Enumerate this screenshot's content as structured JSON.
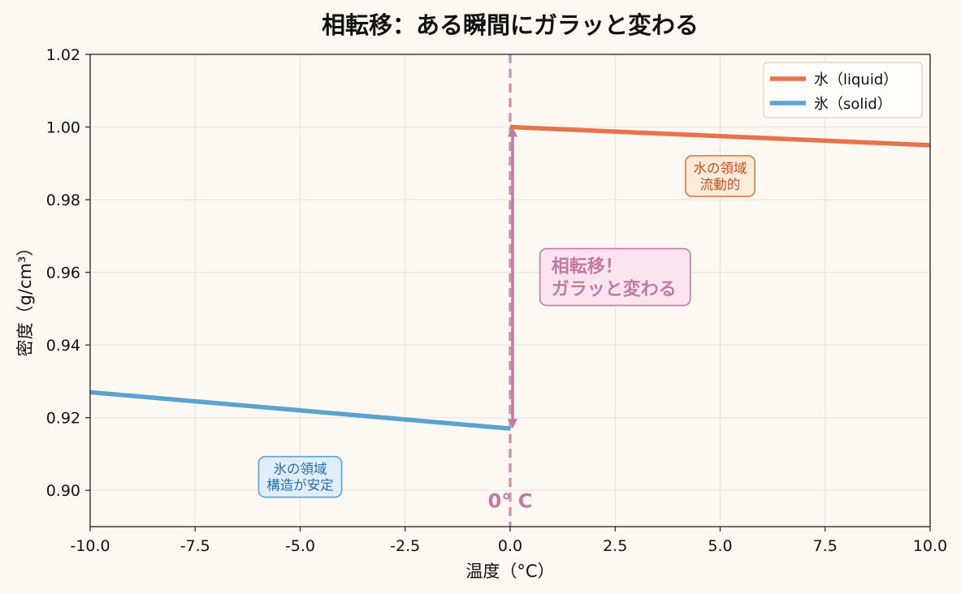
{
  "chart_data": {
    "type": "line",
    "title": "相転移：ある瞬間にガラッと変わる",
    "xlabel": "温度（°C）",
    "ylabel": "密度（g/cm³）",
    "xlim": [
      -10,
      10
    ],
    "ylim": [
      0.89,
      1.02
    ],
    "x_ticks": [
      -10,
      -7.5,
      -5,
      -2.5,
      0,
      2.5,
      5,
      7.5,
      10
    ],
    "y_ticks": [
      0.9,
      0.92,
      0.94,
      0.96,
      0.98,
      1.0,
      1.02
    ],
    "x_tick_labels": [
      "-10.0",
      "-7.5",
      "-5.0",
      "-2.5",
      "0.0",
      "2.5",
      "5.0",
      "7.5",
      "10.0"
    ],
    "y_tick_labels": [
      "0.90",
      "0.92",
      "0.94",
      "0.96",
      "0.98",
      "1.00",
      "1.02"
    ],
    "grid": true,
    "legend_position": "top-right",
    "series": [
      {
        "name": "水（liquid）",
        "color": "#e8734a",
        "x": [
          0,
          10
        ],
        "y": [
          1.0,
          0.995
        ]
      },
      {
        "name": "氷（solid）",
        "color": "#5ba3cf",
        "x": [
          -10,
          0
        ],
        "y": [
          0.927,
          0.917
        ]
      }
    ],
    "transition": {
      "x": 0,
      "label": "0° C",
      "color": "#c27ba0",
      "arrow_from": 0.917,
      "arrow_to": 1.0
    },
    "annotations": [
      {
        "id": "transition",
        "lines": [
          "相転移！",
          "ガラッと変わる"
        ],
        "x": 2.5,
        "y": 0.9587,
        "text_color": "#c27ba0",
        "bg": "#fbe4ef",
        "border": "#c27ba0"
      },
      {
        "id": "water-region",
        "lines": [
          "水の領域",
          "流動的"
        ],
        "x": 5.0,
        "y": 0.9865,
        "text_color": "#c0502a",
        "bg": "#fdebd8",
        "border": "#e8734a"
      },
      {
        "id": "ice-region",
        "lines": [
          "氷の領域",
          "構造が安定"
        ],
        "x": -5.0,
        "y": 0.9037,
        "text_color": "#2a6fad",
        "bg": "#dfeefa",
        "border": "#5ba3cf"
      }
    ]
  }
}
